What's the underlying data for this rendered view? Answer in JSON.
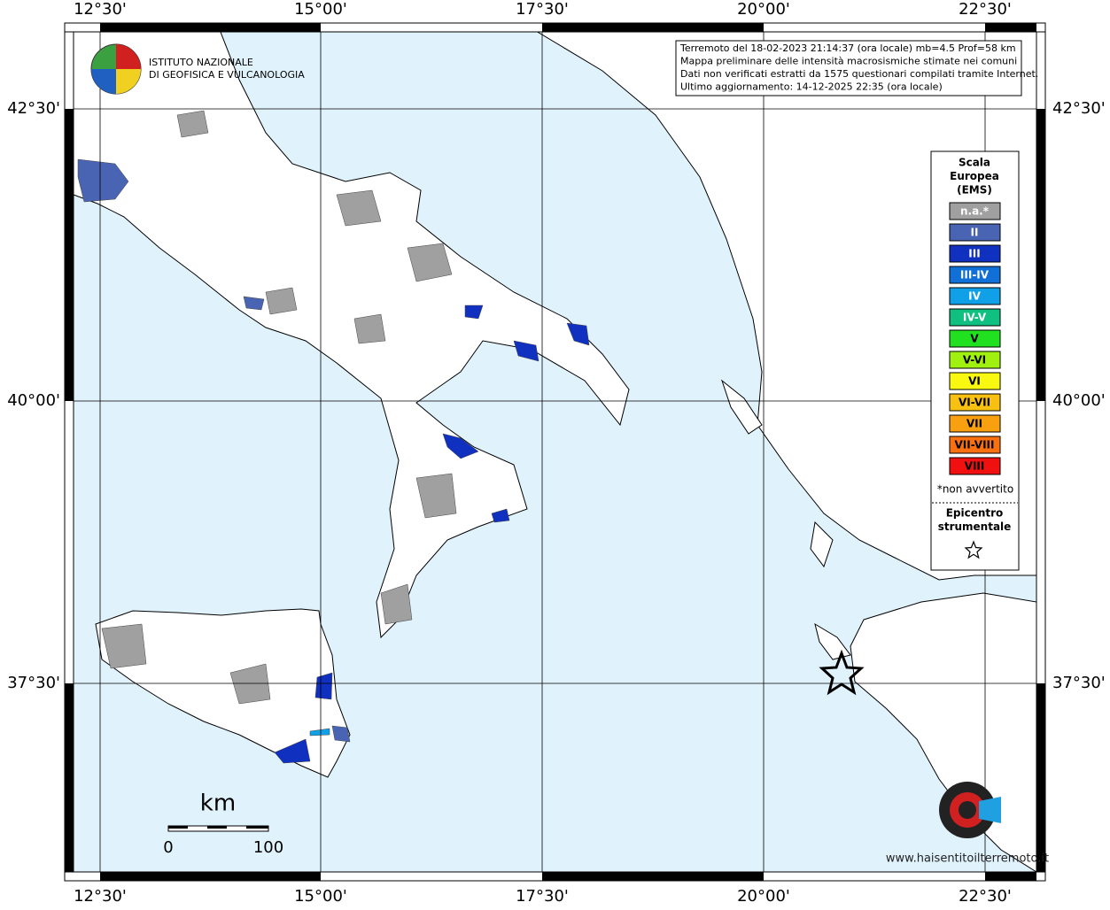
{
  "map": {
    "x_labels": [
      "12°30'",
      "15°00'",
      "17°30'",
      "20°00'",
      "22°30'"
    ],
    "y_labels": [
      "42°30'",
      "40°00'",
      "37°30'"
    ],
    "info": [
      "Terremoto del 18-02-2023 21:14:37 (ora locale) mb=4.5 Prof=58 km",
      "Mappa preliminare delle intensità macrosismiche stimate nei comuni",
      "Dati non verificati estratti da 1575 questionari compilati tramite Internet.",
      "Ultimo aggiornamento: 14-12-2025 22:35 (ora locale)"
    ],
    "legend": {
      "title": [
        "Scala",
        "Europea",
        "(EMS)"
      ],
      "items": [
        {
          "label": "n.a.*",
          "color": "#a0a0a0"
        },
        {
          "label": "II",
          "color": "#4a64b4"
        },
        {
          "label": "III",
          "color": "#1030c0"
        },
        {
          "label": "III-IV",
          "color": "#1070d8"
        },
        {
          "label": "IV",
          "color": "#10a0e8"
        },
        {
          "label": "IV-V",
          "color": "#10c080"
        },
        {
          "label": "V",
          "color": "#20e020"
        },
        {
          "label": "V-VI",
          "color": "#a0f010"
        },
        {
          "label": "VI",
          "color": "#f8f810"
        },
        {
          "label": "VI-VII",
          "color": "#f8c010"
        },
        {
          "label": "VII",
          "color": "#f8a010"
        },
        {
          "label": "VII-VIII",
          "color": "#f87010"
        },
        {
          "label": "VIII",
          "color": "#f01010"
        }
      ],
      "note": "*non avvertito",
      "epicenter": [
        "Epicentro",
        "strumentale"
      ]
    },
    "scale": {
      "unit": "km",
      "labels": [
        "0",
        "100"
      ]
    },
    "logo": [
      "ISTITUTO NAZIONALE",
      "DI GEOFISICA E VULCANOLOGIA"
    ],
    "site_logo": "www.haisentitoilterremoto.it"
  }
}
